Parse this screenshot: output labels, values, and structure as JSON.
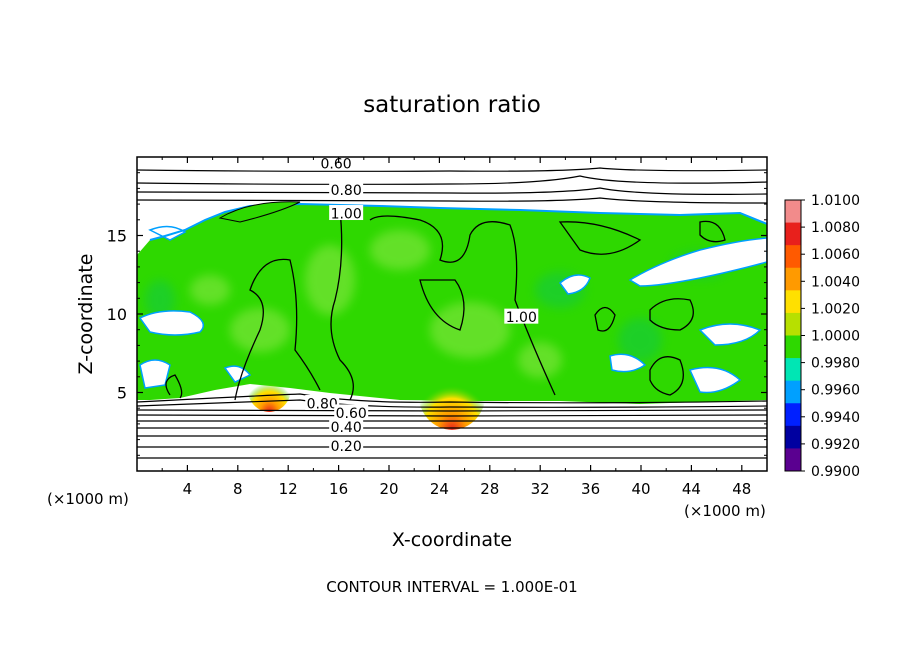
{
  "chart_data": {
    "type": "heatmap",
    "title": "saturation ratio",
    "xlabel": "X-coordinate",
    "ylabel": "Z-coordinate",
    "x_units": "(×1000 m)",
    "z_units": "(×1000 m)",
    "xlim": [
      0,
      50
    ],
    "ylim": [
      0,
      20
    ],
    "x_ticks": [
      "4",
      "8",
      "12",
      "16",
      "20",
      "24",
      "28",
      "32",
      "36",
      "40",
      "44",
      "48"
    ],
    "y_ticks": [
      "5",
      "10",
      "15"
    ],
    "footer": "CONTOUR INTERVAL = 1.000E-01",
    "colorbar": {
      "labels": [
        "1.0100",
        "1.0080",
        "1.0060",
        "1.0040",
        "1.0020",
        "1.0000",
        "0.9980",
        "0.9960",
        "0.9940",
        "0.9920",
        "0.9900"
      ],
      "colors": [
        "#f28b8b",
        "#e8201c",
        "#ff5a00",
        "#ff9a00",
        "#ffe000",
        "#b7e000",
        "#2ed800",
        "#00e6b4",
        "#00a0ff",
        "#0020ff",
        "#0000a0",
        "#5a0090"
      ]
    },
    "contour_labels": [
      {
        "text": "0.60",
        "x": 15.8,
        "z": 19.6
      },
      {
        "text": "0.80",
        "x": 16.6,
        "z": 17.9
      },
      {
        "text": "1.00",
        "x": 16.6,
        "z": 16.4
      },
      {
        "text": "1.00",
        "x": 30.5,
        "z": 9.8
      },
      {
        "text": "0.80",
        "x": 14.7,
        "z": 4.3
      },
      {
        "text": "0.60",
        "x": 17.0,
        "z": 3.7
      },
      {
        "text": "0.40",
        "x": 16.6,
        "z": 2.8
      },
      {
        "text": "0.20",
        "x": 16.6,
        "z": 1.6
      }
    ],
    "hotspots": [
      {
        "x": 25.0,
        "z": 5.0,
        "value": 1.008
      },
      {
        "x": 10.5,
        "z": 5.3,
        "value": 1.007
      }
    ]
  }
}
